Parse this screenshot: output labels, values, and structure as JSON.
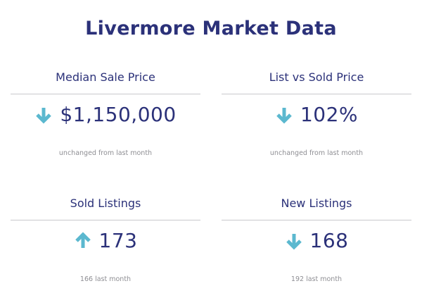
{
  "page": {
    "title": "Livermore Market Data"
  },
  "colors": {
    "title": "#2b3179",
    "arrow": "#5bb8cf",
    "divider": "#c9c9cc",
    "note": "#8e8e93"
  },
  "cards": [
    {
      "label": "Median Sale Price",
      "value": "$1,150,000",
      "trend_icon": "arrow-down-icon",
      "note": "unchanged from last month"
    },
    {
      "label": "List vs Sold Price",
      "value": "102%",
      "trend_icon": "arrow-down-icon",
      "note": "unchanged from last month"
    },
    {
      "label": "Sold Listings",
      "value": "173",
      "trend_icon": "arrow-up-icon",
      "note": "166 last month"
    },
    {
      "label": "New Listings",
      "value": "168",
      "trend_icon": "arrow-down-icon",
      "note": "192 last month"
    }
  ]
}
